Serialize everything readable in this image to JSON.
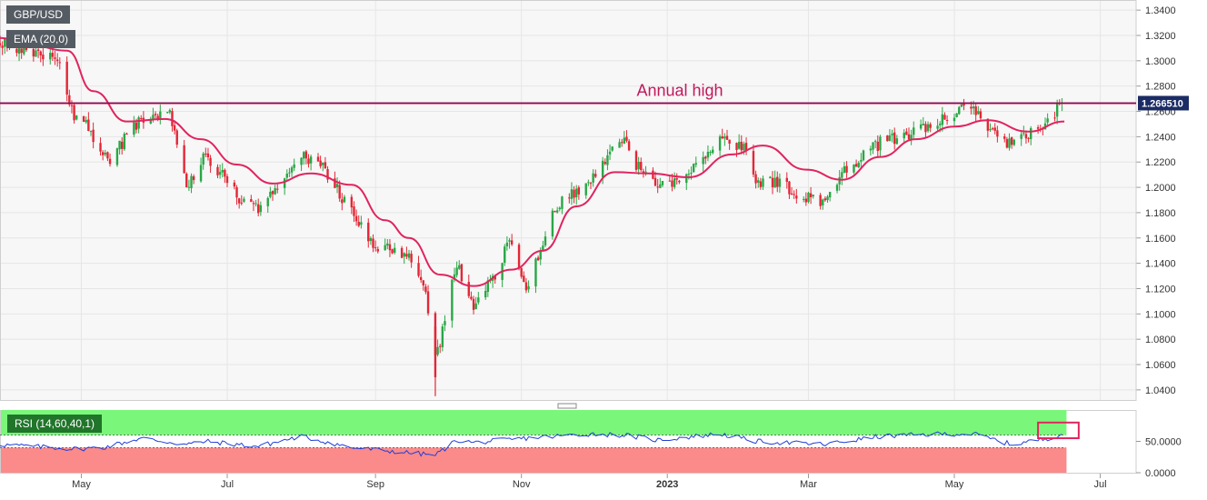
{
  "colors": {
    "up": "#28a745",
    "down": "#e32636",
    "ema": "#e0245e",
    "rsi": "#1f3fd6",
    "rsi_upper_zone": "#7af77a",
    "rsi_lower_zone": "#fb8a8a",
    "annual_high_line": "#c2185b",
    "price_tag_bg": "#1b2b64",
    "grid": "#e6e6e6"
  },
  "labels": {
    "symbol": "GBP/USD",
    "ema": "EMA (20,0)",
    "rsi": "RSI (14,60,40,1)",
    "annotation": "Annual high",
    "last_price": "1.266510"
  },
  "chart_data": [
    {
      "type": "candlestick",
      "title": "GBP/USD",
      "x_tick_labels": [
        "May",
        "Jul",
        "Sep",
        "Nov",
        "2023",
        "Mar",
        "May",
        "Jul"
      ],
      "y_tick_labels": [
        "1.3400",
        "1.3200",
        "1.3000",
        "1.2800",
        "1.2600",
        "1.2400",
        "1.2200",
        "1.2000",
        "1.1800",
        "1.1600",
        "1.1400",
        "1.1200",
        "1.1000",
        "1.0800",
        "1.0600",
        "1.0400"
      ],
      "ylim": [
        1.032,
        1.348
      ],
      "grid": true,
      "anchors": [
        [
          "2022-03-28",
          1.313
        ],
        [
          "2022-04-05",
          1.311
        ],
        [
          "2022-04-13",
          1.306
        ],
        [
          "2022-04-21",
          1.301
        ],
        [
          "2022-04-28",
          1.256
        ],
        [
          "2022-05-03",
          1.25
        ],
        [
          "2022-05-12",
          1.22
        ],
        [
          "2022-05-26",
          1.255
        ],
        [
          "2022-06-07",
          1.256
        ],
        [
          "2022-06-14",
          1.2
        ],
        [
          "2022-06-22",
          1.226
        ],
        [
          "2022-07-06",
          1.192
        ],
        [
          "2022-07-14",
          1.184
        ],
        [
          "2022-07-27",
          1.215
        ],
        [
          "2022-08-01",
          1.224
        ],
        [
          "2022-08-10",
          1.217
        ],
        [
          "2022-08-22",
          1.18
        ],
        [
          "2022-09-02",
          1.15
        ],
        [
          "2022-09-07",
          1.152
        ],
        [
          "2022-09-14",
          1.148
        ],
        [
          "2022-09-21",
          1.125
        ],
        [
          "2022-09-26",
          1.07
        ],
        [
          "2022-09-28",
          1.078
        ],
        [
          "2022-10-05",
          1.14
        ],
        [
          "2022-10-12",
          1.105
        ],
        [
          "2022-10-21",
          1.13
        ],
        [
          "2022-10-27",
          1.16
        ],
        [
          "2022-11-03",
          1.12
        ],
        [
          "2022-11-15",
          1.185
        ],
        [
          "2022-11-30",
          1.205
        ],
        [
          "2022-12-14",
          1.24
        ],
        [
          "2022-12-19",
          1.218
        ],
        [
          "2022-12-28",
          1.203
        ],
        [
          "2023-01-06",
          1.205
        ],
        [
          "2023-01-23",
          1.238
        ],
        [
          "2023-02-02",
          1.23
        ],
        [
          "2023-02-07",
          1.205
        ],
        [
          "2023-02-15",
          1.205
        ],
        [
          "2023-02-24",
          1.195
        ],
        [
          "2023-03-08",
          1.185
        ],
        [
          "2023-03-15",
          1.212
        ],
        [
          "2023-03-31",
          1.235
        ],
        [
          "2023-04-14",
          1.244
        ],
        [
          "2023-04-28",
          1.256
        ],
        [
          "2023-05-09",
          1.265
        ],
        [
          "2023-05-17",
          1.242
        ],
        [
          "2023-05-25",
          1.233
        ],
        [
          "2023-06-05",
          1.245
        ],
        [
          "2023-06-09",
          1.253
        ],
        [
          "2023-06-15",
          1.266
        ]
      ],
      "last_price": 1.26651,
      "annual_high": 1.2665,
      "series": [
        {
          "name": "EMA (20,0)",
          "type": "line",
          "x": [
            "2022-03-28",
            "2022-04-10",
            "2022-04-25",
            "2022-05-06",
            "2022-05-20",
            "2022-06-05",
            "2022-06-20",
            "2022-07-05",
            "2022-07-20",
            "2022-08-05",
            "2022-08-22",
            "2022-09-05",
            "2022-09-15",
            "2022-09-28",
            "2022-10-12",
            "2022-10-28",
            "2022-11-10",
            "2022-11-24",
            "2022-12-10",
            "2022-12-24",
            "2023-01-10",
            "2023-01-28",
            "2023-02-10",
            "2023-02-28",
            "2023-03-15",
            "2023-03-31",
            "2023-04-15",
            "2023-05-01",
            "2023-05-15",
            "2023-06-01",
            "2023-06-16"
          ],
          "y": [
            1.318,
            1.312,
            1.308,
            1.276,
            1.252,
            1.254,
            1.238,
            1.218,
            1.203,
            1.211,
            1.202,
            1.174,
            1.16,
            1.131,
            1.122,
            1.135,
            1.15,
            1.185,
            1.212,
            1.211,
            1.208,
            1.226,
            1.233,
            1.214,
            1.206,
            1.224,
            1.238,
            1.248,
            1.253,
            1.244,
            1.252
          ]
        }
      ]
    },
    {
      "type": "line",
      "title": "RSI (14,60,40,1)",
      "y_tick_labels": [
        "50.0000",
        "0.0000"
      ],
      "ylim": [
        0,
        100
      ],
      "zones": {
        "upper": 60,
        "lower": 40
      },
      "anchors": [
        [
          "2022-03-28",
          45
        ],
        [
          "2022-04-28",
          38
        ],
        [
          "2022-05-10",
          40
        ],
        [
          "2022-05-26",
          55
        ],
        [
          "2022-06-14",
          45
        ],
        [
          "2022-06-22",
          50
        ],
        [
          "2022-07-14",
          42
        ],
        [
          "2022-08-01",
          58
        ],
        [
          "2022-08-22",
          40
        ],
        [
          "2022-09-26",
          28
        ],
        [
          "2022-10-05",
          52
        ],
        [
          "2022-10-12",
          48
        ],
        [
          "2022-11-03",
          55
        ],
        [
          "2022-11-30",
          62
        ],
        [
          "2022-12-14",
          60
        ],
        [
          "2022-12-28",
          52
        ],
        [
          "2023-01-23",
          62
        ],
        [
          "2023-02-07",
          50
        ],
        [
          "2023-03-08",
          45
        ],
        [
          "2023-03-31",
          58
        ],
        [
          "2023-04-28",
          62
        ],
        [
          "2023-05-09",
          62
        ],
        [
          "2023-05-25",
          45
        ],
        [
          "2023-06-09",
          55
        ],
        [
          "2023-06-15",
          62
        ]
      ],
      "highlight": {
        "from": "2023-06-05",
        "to": "2023-06-22",
        "low": 55,
        "high": 80
      }
    }
  ]
}
